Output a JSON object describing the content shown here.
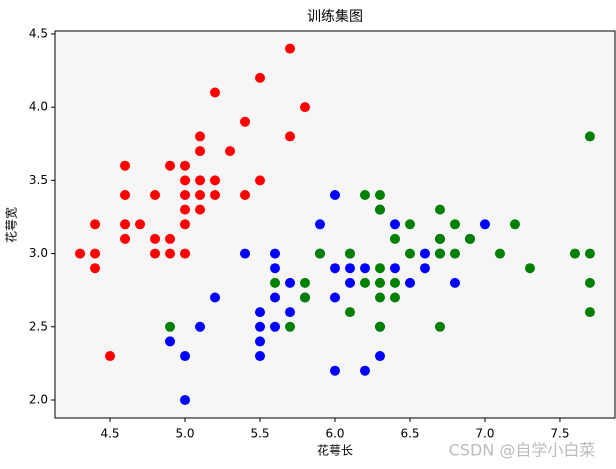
{
  "chart_data": {
    "type": "scatter",
    "title": "训练集图",
    "x_label": "花萼长",
    "y_label": "花萼宽",
    "watermark": "CSDN @自学小白菜",
    "xlim": [
      4.133,
      7.867
    ],
    "ylim": [
      1.877,
      4.52
    ],
    "xticks": [
      {
        "value": 4.5,
        "label": "4.5"
      },
      {
        "value": 5.0,
        "label": "5.0"
      },
      {
        "value": 5.5,
        "label": "5.5"
      },
      {
        "value": 6.0,
        "label": "6.0"
      },
      {
        "value": 6.5,
        "label": "6.5"
      },
      {
        "value": 7.0,
        "label": "7.0"
      },
      {
        "value": 7.5,
        "label": "7.5"
      }
    ],
    "yticks": [
      {
        "value": 2.0,
        "label": "2.0"
      },
      {
        "value": 2.5,
        "label": "2.5"
      },
      {
        "value": 3.0,
        "label": "3.0"
      },
      {
        "value": 3.5,
        "label": "3.5"
      },
      {
        "value": 4.0,
        "label": "4.0"
      },
      {
        "value": 4.5,
        "label": "4.5"
      }
    ],
    "series": [
      {
        "color": "#ff0000",
        "x": [
          4.3,
          4.4,
          4.4,
          4.4,
          4.5,
          4.6,
          4.6,
          4.6,
          4.6,
          4.7,
          4.8,
          4.8,
          4.8,
          4.9,
          4.9,
          4.9,
          5.0,
          5.0,
          5.0,
          5.0,
          5.0,
          5.0,
          5.1,
          5.1,
          5.1,
          5.1,
          5.1,
          5.2,
          5.2,
          5.2,
          5.3,
          5.4,
          5.4,
          5.5,
          5.5,
          5.7,
          5.7,
          5.8
        ],
        "y": [
          3.0,
          3.2,
          3.0,
          2.9,
          2.3,
          3.6,
          3.4,
          3.2,
          3.1,
          3.2,
          3.4,
          3.1,
          3.0,
          3.6,
          3.1,
          3.0,
          3.6,
          3.5,
          3.4,
          3.3,
          3.2,
          3.0,
          3.8,
          3.7,
          3.5,
          3.4,
          3.3,
          4.1,
          3.5,
          3.4,
          3.7,
          3.9,
          3.4,
          4.2,
          3.5,
          4.4,
          3.8,
          4.0
        ]
      },
      {
        "color": "#0000ff",
        "x": [
          4.9,
          5.0,
          5.0,
          5.1,
          5.2,
          5.4,
          5.5,
          5.5,
          5.5,
          5.5,
          5.6,
          5.6,
          5.6,
          5.6,
          5.7,
          5.7,
          5.8,
          5.9,
          5.9,
          6.0,
          6.0,
          6.0,
          6.0,
          6.1,
          6.1,
          6.1,
          6.2,
          6.2,
          6.3,
          6.3,
          6.3,
          6.4,
          6.4,
          6.5,
          6.6,
          6.6,
          6.7,
          6.7,
          6.8,
          6.9,
          7.0
        ],
        "y": [
          2.4,
          2.3,
          2.0,
          2.5,
          2.7,
          3.0,
          2.6,
          2.5,
          2.4,
          2.3,
          3.0,
          2.9,
          2.7,
          2.5,
          2.8,
          2.6,
          2.7,
          3.2,
          3.0,
          3.4,
          2.9,
          2.7,
          2.2,
          3.0,
          2.8,
          2.9,
          2.9,
          2.2,
          3.3,
          2.5,
          2.3,
          3.2,
          2.9,
          2.8,
          3.0,
          2.9,
          3.1,
          3.0,
          2.8,
          3.1,
          3.2
        ]
      },
      {
        "color": "#008000",
        "x": [
          4.9,
          5.6,
          5.7,
          5.8,
          5.8,
          5.9,
          6.1,
          6.1,
          6.2,
          6.2,
          6.3,
          6.3,
          6.3,
          6.3,
          6.3,
          6.3,
          6.4,
          6.4,
          6.4,
          6.5,
          6.5,
          6.7,
          6.7,
          6.7,
          6.7,
          6.8,
          6.8,
          6.9,
          7.1,
          7.2,
          7.3,
          7.6,
          7.7,
          7.7,
          7.7,
          7.7
        ],
        "y": [
          2.5,
          2.8,
          2.5,
          2.8,
          2.7,
          3.0,
          3.0,
          2.6,
          3.4,
          2.8,
          3.4,
          3.3,
          2.9,
          2.8,
          2.7,
          2.5,
          3.1,
          2.8,
          2.7,
          3.2,
          3.0,
          3.3,
          3.1,
          3.0,
          2.5,
          3.2,
          3.0,
          3.1,
          3.0,
          3.2,
          2.9,
          3.0,
          3.8,
          3.0,
          2.8,
          2.6
        ]
      }
    ]
  }
}
